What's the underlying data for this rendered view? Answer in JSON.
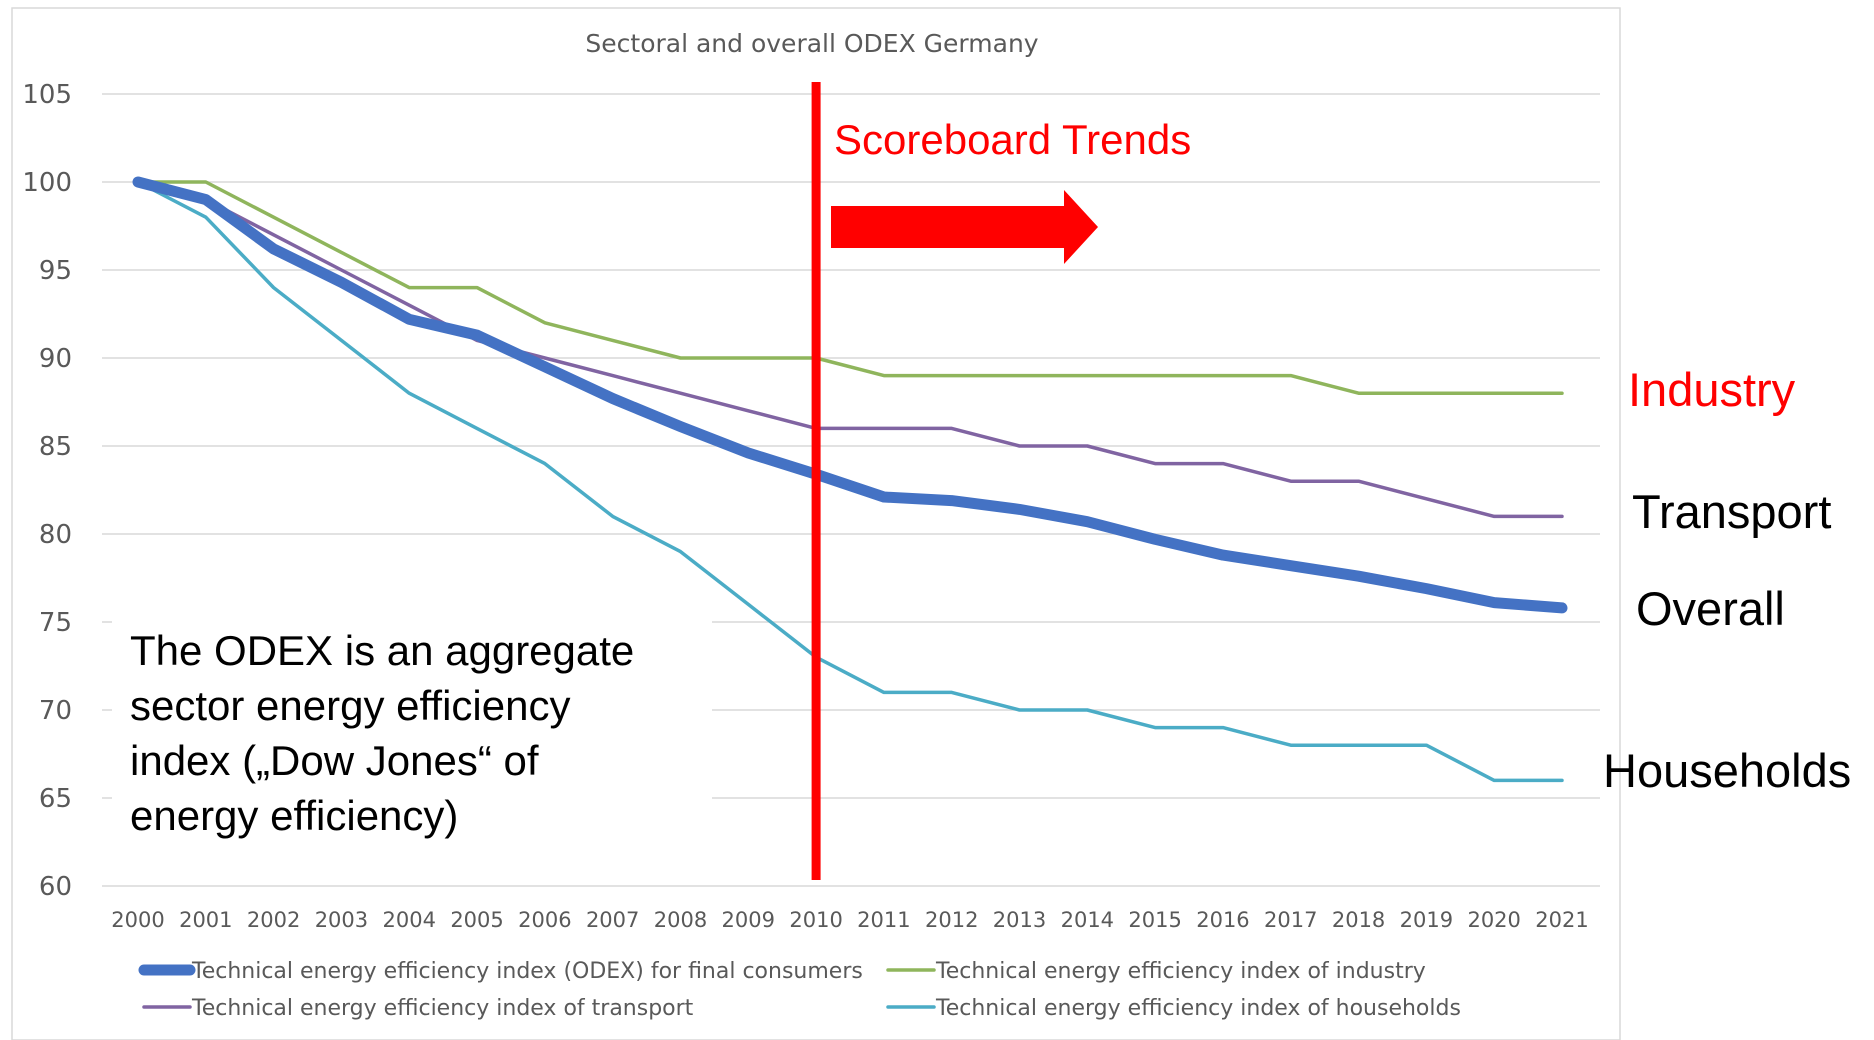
{
  "colors": {
    "overall": "#4472c4",
    "industry": "#8fb55c",
    "transport": "#8064a2",
    "households": "#4bacc6",
    "highlight": "#ff0000",
    "grid": "#d9d9d9",
    "text": "#595959"
  },
  "chart_data": {
    "type": "line",
    "title": "Sectoral and overall ODEX Germany",
    "xlabel": "",
    "ylabel": "",
    "ylim": [
      60,
      105
    ],
    "yticks": [
      60,
      65,
      70,
      75,
      80,
      85,
      90,
      95,
      100,
      105
    ],
    "grid": true,
    "legend_position": "bottom",
    "x": [
      "2000",
      "2001",
      "2002",
      "2003",
      "2004",
      "2005",
      "2006",
      "2007",
      "2008",
      "2009",
      "2010",
      "2011",
      "2012",
      "2013",
      "2014",
      "2015",
      "2016",
      "2017",
      "2018",
      "2019",
      "2020",
      "2021"
    ],
    "series": [
      {
        "key": "overall",
        "name": "Technical energy efficiency index (ODEX) for final consumers",
        "values": [
          100,
          99,
          96.2,
          94.3,
          92.2,
          91.3,
          89.5,
          87.7,
          86.1,
          84.6,
          83.4,
          82.1,
          81.9,
          81.4,
          80.7,
          79.7,
          78.8,
          78.2,
          77.6,
          76.9,
          76.1,
          75.8
        ]
      },
      {
        "key": "industry",
        "name": "Technical energy efficiency index of industry",
        "values": [
          100,
          100,
          98,
          96,
          94,
          94,
          92,
          91,
          90,
          90,
          90,
          89,
          89,
          89,
          89,
          89,
          89,
          89,
          88,
          88,
          88,
          88
        ]
      },
      {
        "key": "transport",
        "name": "Technical energy efficiency index of transport",
        "values": [
          100,
          99,
          97,
          95,
          93,
          91,
          90,
          89,
          88,
          87,
          86,
          86,
          86,
          85,
          85,
          84,
          84,
          83,
          83,
          82,
          81,
          81
        ]
      },
      {
        "key": "households",
        "name": "Technical energy efficiency index of households",
        "values": [
          100,
          98,
          94,
          91,
          88,
          86,
          84,
          81,
          79,
          76,
          73,
          71,
          71,
          70,
          70,
          69,
          69,
          68,
          68,
          68,
          66,
          66
        ]
      }
    ],
    "annotations": {
      "marker_year": "2010",
      "scoreboard": "Scoreboard Trends",
      "note_lines": [
        "The ODEX is an aggregate",
        "sector energy efficiency",
        "index („Dow Jones“ of",
        "energy efficiency)"
      ]
    }
  },
  "side_labels": {
    "industry": "Industry",
    "transport": "Transport",
    "overall": "Overall",
    "households": "Households"
  }
}
